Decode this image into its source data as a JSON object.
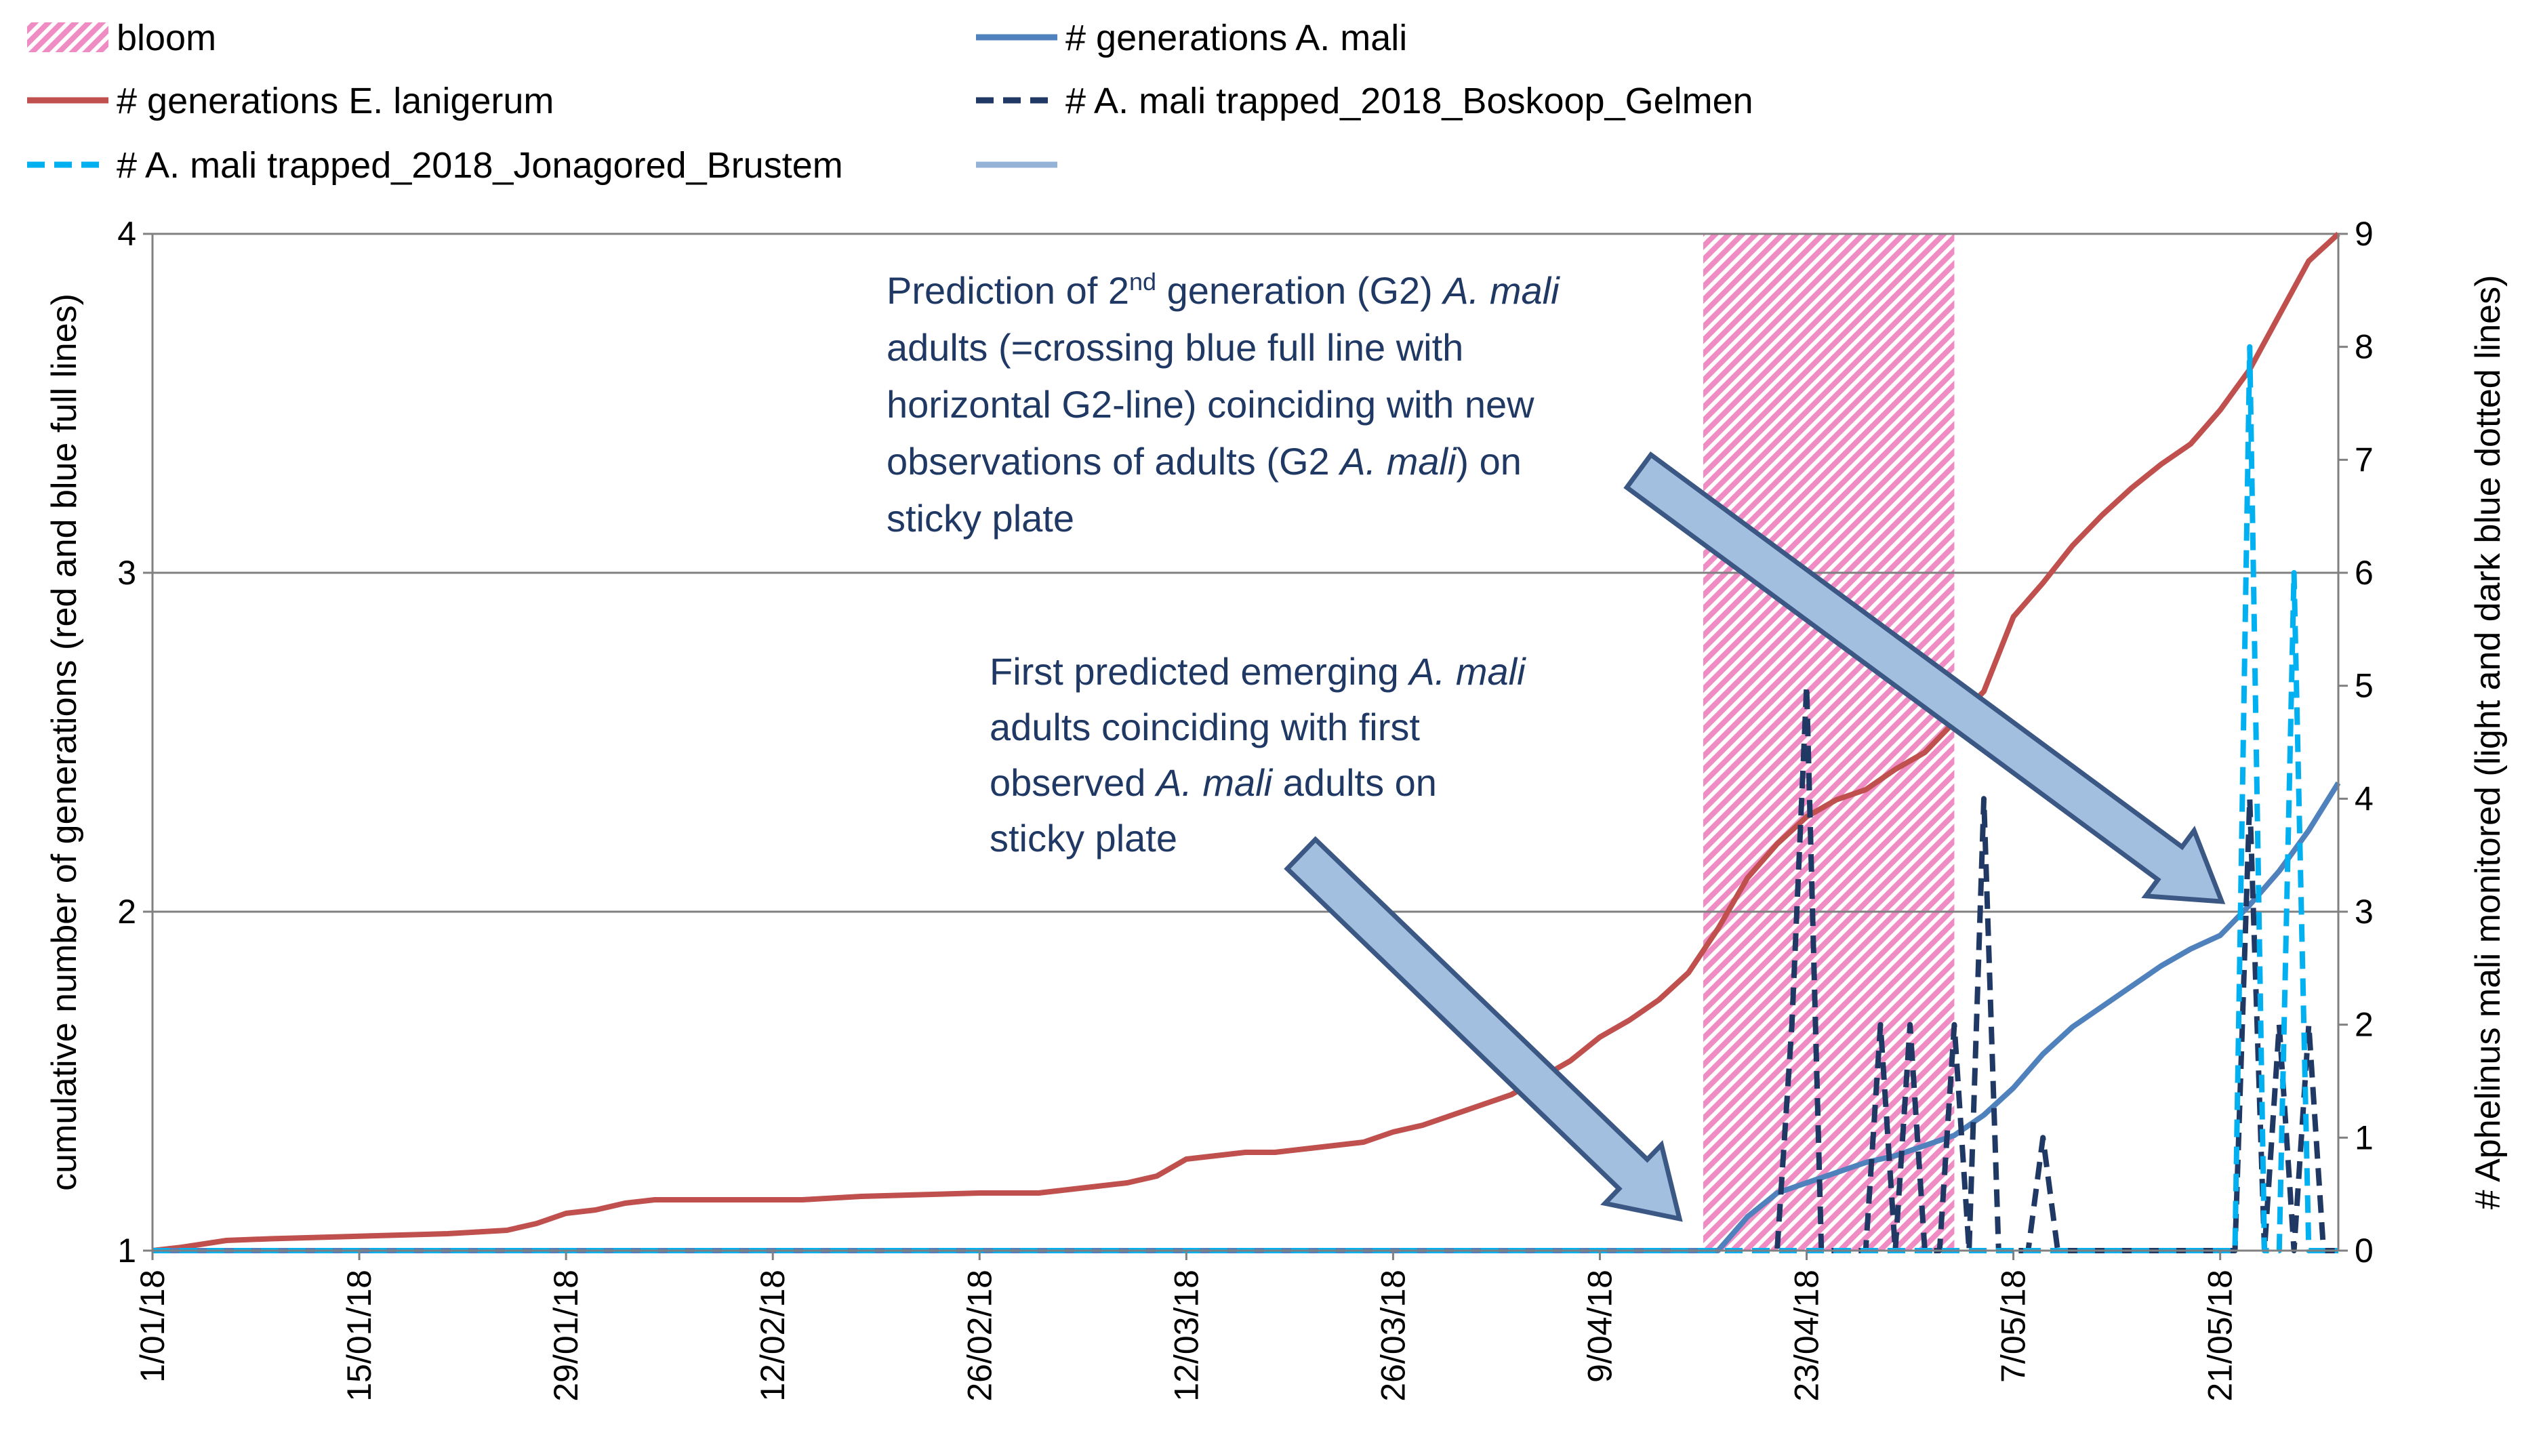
{
  "chart_data": {
    "type": "line",
    "x_tick_labels": [
      "1/01/18",
      "15/01/18",
      "29/01/18",
      "12/02/18",
      "26/02/18",
      "12/03/18",
      "26/03/18",
      "9/04/18",
      "23/04/18",
      "7/05/18",
      "21/05/18"
    ],
    "x_tick_days": [
      0,
      14,
      28,
      42,
      56,
      70,
      84,
      98,
      112,
      126,
      140
    ],
    "x_range_days": [
      0,
      148
    ],
    "y_left_label": "cumulative number of generations (red and blue full lines)",
    "y_left_ticks": [
      1,
      2,
      3,
      4
    ],
    "y_left_range": [
      1,
      4
    ],
    "y_right_label": "# Aphelinus mali monitored (light and dark blue dotted lines)",
    "y_right_ticks": [
      0,
      1,
      2,
      3,
      4,
      5,
      6,
      7,
      8,
      9
    ],
    "y_right_range": [
      0,
      9
    ],
    "gridlines": "horizontal",
    "legend_placement": "top",
    "bloom": {
      "name": "bloom",
      "start_day": 105,
      "end_day": 122,
      "color": "#f5a0cf"
    },
    "series": [
      {
        "name": "# generations E. lanigerum",
        "axis": "left",
        "style": "solid",
        "color": "#c0504d",
        "x": [
          0,
          2,
          5,
          8,
          12,
          16,
          20,
          24,
          26,
          28,
          30,
          32,
          34,
          36,
          40,
          44,
          48,
          52,
          56,
          60,
          62,
          64,
          66,
          68,
          70,
          72,
          74,
          76,
          78,
          80,
          82,
          84,
          86,
          88,
          90,
          92,
          94,
          96,
          98,
          100,
          102,
          104,
          106,
          108,
          110,
          112,
          114,
          116,
          118,
          120,
          122,
          124,
          126,
          128,
          130,
          132,
          134,
          136,
          138,
          140,
          142,
          144,
          146,
          148
        ],
        "values": [
          1.0,
          1.01,
          1.03,
          1.035,
          1.04,
          1.045,
          1.05,
          1.06,
          1.08,
          1.11,
          1.12,
          1.14,
          1.15,
          1.15,
          1.15,
          1.15,
          1.16,
          1.165,
          1.17,
          1.17,
          1.18,
          1.19,
          1.2,
          1.22,
          1.27,
          1.28,
          1.29,
          1.29,
          1.3,
          1.31,
          1.32,
          1.35,
          1.37,
          1.4,
          1.43,
          1.46,
          1.51,
          1.56,
          1.63,
          1.68,
          1.74,
          1.82,
          1.95,
          2.1,
          2.2,
          2.28,
          2.33,
          2.36,
          2.42,
          2.47,
          2.56,
          2.65,
          2.87,
          2.97,
          3.08,
          3.17,
          3.25,
          3.32,
          3.38,
          3.48,
          3.6,
          3.76,
          3.92,
          4.0
        ]
      },
      {
        "name": "# generations A. mali",
        "axis": "left",
        "style": "solid",
        "color": "#4f81bd",
        "x": [
          0,
          106,
          108,
          110,
          112,
          114,
          116,
          118,
          120,
          122,
          124,
          126,
          128,
          130,
          132,
          134,
          136,
          138,
          140,
          142,
          144,
          146,
          148
        ],
        "values": [
          1.0,
          1.0,
          1.1,
          1.17,
          1.2,
          1.23,
          1.26,
          1.28,
          1.31,
          1.34,
          1.4,
          1.48,
          1.58,
          1.66,
          1.72,
          1.78,
          1.84,
          1.89,
          1.93,
          2.02,
          2.12,
          2.24,
          2.38
        ]
      },
      {
        "name": "# A. mali trapped_2018_Boskoop_Gelmen",
        "axis": "right",
        "style": "dashed",
        "color": "#1f3864",
        "x": [
          0,
          110,
          111,
          112,
          113,
          114,
          116,
          117,
          118,
          119,
          120,
          121,
          122,
          123,
          124,
          125,
          126,
          127,
          128,
          129,
          130,
          131,
          132,
          133,
          134,
          135,
          136,
          137,
          138,
          139,
          140,
          141,
          142,
          143,
          144,
          145,
          146,
          147,
          148
        ],
        "values": [
          0,
          0,
          2,
          5,
          0,
          0,
          0,
          2,
          0,
          2,
          0,
          0,
          2,
          0,
          4,
          0,
          0,
          0,
          1,
          0,
          0,
          0,
          0,
          0,
          0,
          0,
          0,
          0,
          0,
          0,
          0,
          0,
          4,
          0,
          2,
          0,
          2,
          0,
          0
        ]
      },
      {
        "name": "# A. mali trapped_2018_Jonagored_Brustem",
        "axis": "right",
        "style": "dashed",
        "color": "#00b0f0",
        "x": [
          0,
          140,
          141,
          142,
          143,
          144,
          145,
          146,
          147,
          148
        ],
        "values": [
          0,
          0,
          0,
          8,
          0,
          0,
          6,
          0,
          0,
          0
        ]
      }
    ],
    "legend_entries": [
      "bloom",
      "# generations A. mali",
      "# generations E. lanigerum",
      "# A. mali trapped_2018_Boskoop_Gelmen",
      "# A. mali trapped_2018_Jonagored_Brustem",
      ""
    ],
    "annotations": [
      {
        "id": "g2",
        "lines": [
          [
            {
              "t": "Prediction of 2"
            },
            {
              "t": "nd",
              "sup": true
            },
            {
              "t": " generation (G2) "
            },
            {
              "t": "A. mali",
              "i": true
            }
          ],
          [
            {
              "t": "adults (=crossing blue full line with"
            }
          ],
          [
            {
              "t": "horizontal G2-line) coinciding with new"
            }
          ],
          [
            {
              "t": "observations of adults (G2 "
            },
            {
              "t": "A. mali",
              "i": true
            },
            {
              "t": ") on"
            }
          ],
          [
            {
              "t": "sticky plate"
            }
          ]
        ]
      },
      {
        "id": "first",
        "lines": [
          [
            {
              "t": "First predicted emerging "
            },
            {
              "t": "A. mali",
              "i": true
            }
          ],
          [
            {
              "t": "adults coinciding with first"
            }
          ],
          [
            {
              "t": "observed "
            },
            {
              "t": "A. mali",
              "i": true
            },
            {
              "t": " adults on"
            }
          ],
          [
            {
              "t": "sticky plate"
            }
          ]
        ]
      }
    ]
  }
}
